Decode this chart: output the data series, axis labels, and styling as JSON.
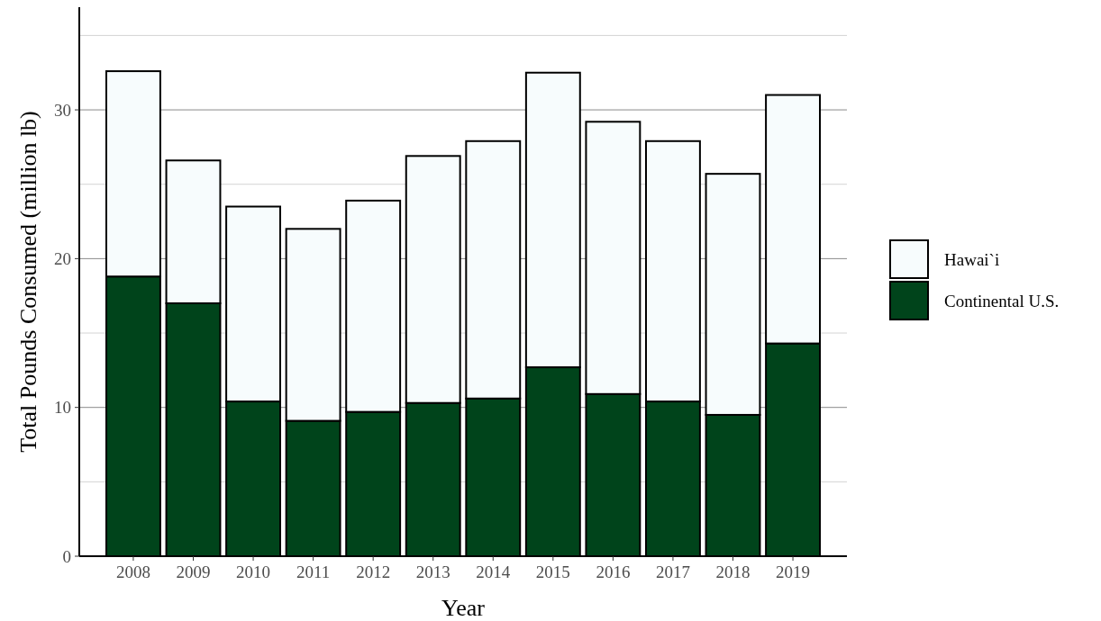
{
  "chart_data": {
    "type": "bar",
    "stacked": true,
    "xlabel": "Year",
    "ylabel": "Total Pounds Consumed (million lb)",
    "categories": [
      "2008",
      "2009",
      "2010",
      "2011",
      "2012",
      "2013",
      "2014",
      "2015",
      "2016",
      "2017",
      "2018",
      "2019"
    ],
    "series": [
      {
        "name": "Continental U.S.",
        "color": "#00441b",
        "values": [
          18.8,
          17.0,
          10.4,
          9.1,
          9.7,
          10.3,
          10.6,
          12.7,
          10.9,
          10.4,
          9.5,
          14.3
        ]
      },
      {
        "name": "Hawai`i",
        "color": "#f7fcfd",
        "values": [
          13.8,
          9.6,
          13.1,
          12.9,
          14.2,
          16.6,
          17.3,
          19.8,
          18.3,
          17.5,
          16.2,
          16.7
        ]
      }
    ],
    "ylim": [
      0,
      36.9
    ],
    "yticks": [
      0,
      {
        "value": 5,
        "label": null
      },
      10,
      {
        "value": 15,
        "label": null
      },
      20,
      {
        "value": 25,
        "label": null
      },
      30,
      {
        "value": 35,
        "label": null
      }
    ],
    "grid": "y",
    "legend": "right"
  }
}
